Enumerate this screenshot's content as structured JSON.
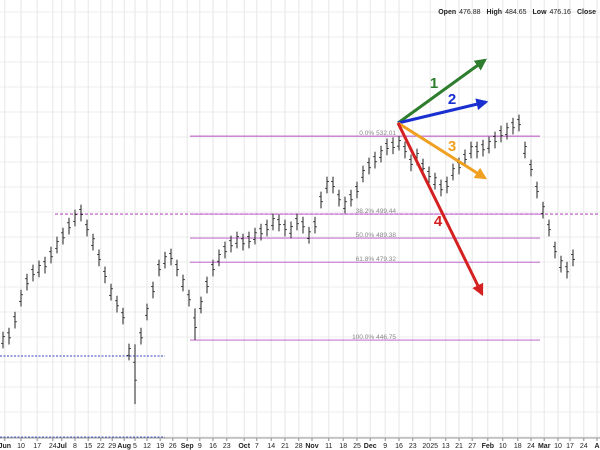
{
  "chart_data": {
    "type": "ohlc",
    "header": [
      {
        "label": "Open",
        "value": "476.88"
      },
      {
        "label": "High",
        "value": "484.65"
      },
      {
        "label": "Low",
        "value": "476.16"
      },
      {
        "label": "Close",
        "value": ""
      }
    ],
    "ylim": [
      405,
      588.9
    ],
    "high": [
      450.3,
      451.9,
      458.6,
      467.8,
      474.5,
      478.3,
      480.0,
      481.6,
      485.8,
      490.0,
      493.7,
      497.9,
      501.3,
      503.4,
      497.1,
      491.2,
      484.6,
      477.5,
      470.3,
      465.3,
      460.3,
      445.3,
      445.0,
      451.9,
      462.0,
      471.2,
      480.4,
      483.7,
      485.0,
      480.4,
      474.1,
      467.8,
      460.0,
      464.9,
      473.3,
      480.4,
      484.6,
      487.9,
      490.4,
      492.1,
      491.2,
      492.1,
      493.7,
      495.4,
      497.1,
      499.6,
      499.2,
      497.1,
      496.3,
      499.6,
      498.3,
      494.1,
      498.3,
      508.8,
      515.1,
      515.1,
      509.6,
      506.7,
      509.6,
      513.0,
      519.7,
      523.0,
      525.5,
      528.0,
      531.0,
      531.5,
      532.01,
      529.7,
      524.3,
      526.8,
      522.6,
      519.3,
      516.7,
      513.8,
      515.1,
      520.5,
      523.0,
      526.4,
      529.7,
      529.7,
      530.5,
      531.8,
      533.9,
      536.4,
      537.6,
      539.7,
      541.0,
      529.7,
      522.2,
      513.0,
      504.6,
      497.1,
      487.9,
      482.0,
      479.5,
      484.6
    ],
    "low": [
      443.3,
      444.9,
      451.6,
      460.8,
      467.5,
      471.3,
      473.0,
      474.6,
      478.8,
      483.0,
      486.7,
      490.9,
      494.3,
      496.4,
      490.1,
      484.2,
      477.6,
      470.5,
      463.3,
      458.3,
      453.3,
      438.3,
      420.0,
      444.9,
      455.0,
      464.2,
      473.4,
      476.7,
      478.0,
      473.4,
      467.1,
      460.8,
      446.75,
      457.9,
      466.3,
      473.4,
      477.6,
      480.9,
      483.4,
      485.1,
      484.2,
      485.1,
      486.7,
      488.4,
      490.1,
      492.6,
      492.2,
      490.1,
      489.3,
      492.6,
      491.3,
      487.1,
      491.3,
      501.8,
      508.1,
      508.1,
      502.6,
      499.7,
      502.6,
      506.0,
      512.7,
      516.0,
      518.5,
      521.0,
      524.0,
      524.5,
      526.0,
      522.7,
      517.3,
      519.8,
      515.6,
      512.3,
      509.7,
      506.8,
      508.1,
      513.5,
      516.0,
      519.4,
      522.7,
      522.7,
      523.5,
      524.8,
      526.9,
      529.4,
      530.6,
      532.7,
      534.0,
      522.7,
      515.2,
      506.0,
      497.6,
      490.1,
      480.9,
      475.0,
      472.5,
      477.6
    ],
    "color": "#222222",
    "xticks": [
      {
        "value": 0.3,
        "label": "Jun"
      },
      {
        "value": 3,
        "label": "10"
      },
      {
        "value": 5.7,
        "label": "17"
      },
      {
        "value": 8.3,
        "label": "24"
      },
      {
        "value": 9.8,
        "label": "Jul"
      },
      {
        "value": 12,
        "label": "8"
      },
      {
        "value": 14.2,
        "label": "15"
      },
      {
        "value": 16.3,
        "label": "22"
      },
      {
        "value": 18.2,
        "label": "29"
      },
      {
        "value": 20.2,
        "label": "Aug"
      },
      {
        "value": 22,
        "label": "5"
      },
      {
        "value": 24,
        "label": "12"
      },
      {
        "value": 26.2,
        "label": "19"
      },
      {
        "value": 28.3,
        "label": "26"
      },
      {
        "value": 30.7,
        "label": "Sep"
      },
      {
        "value": 32.8,
        "label": "9"
      },
      {
        "value": 35,
        "label": "16"
      },
      {
        "value": 37.3,
        "label": "23"
      },
      {
        "value": 40.2,
        "label": "Oct"
      },
      {
        "value": 42.3,
        "label": "7"
      },
      {
        "value": 44.7,
        "label": "14"
      },
      {
        "value": 47,
        "label": "21"
      },
      {
        "value": 49.3,
        "label": "28"
      },
      {
        "value": 51.5,
        "label": "Nov"
      },
      {
        "value": 54.3,
        "label": "11"
      },
      {
        "value": 56.7,
        "label": "18"
      },
      {
        "value": 59,
        "label": "25"
      },
      {
        "value": 61.2,
        "label": "Dec"
      },
      {
        "value": 63.7,
        "label": "9"
      },
      {
        "value": 66,
        "label": "16"
      },
      {
        "value": 68.3,
        "label": "23"
      },
      {
        "value": 71.2,
        "label": "2025"
      },
      {
        "value": 73.8,
        "label": "13"
      },
      {
        "value": 76,
        "label": "21"
      },
      {
        "value": 78.2,
        "label": "27"
      },
      {
        "value": 80.8,
        "label": "Feb"
      },
      {
        "value": 83.3,
        "label": "10"
      },
      {
        "value": 85.8,
        "label": "18"
      },
      {
        "value": 88,
        "label": "24"
      },
      {
        "value": 90.2,
        "label": "Mar"
      },
      {
        "value": 92.5,
        "label": "10"
      },
      {
        "value": 94.5,
        "label": "17"
      },
      {
        "value": 96.8,
        "label": "24"
      },
      {
        "value": 99,
        "label": "A"
      }
    ],
    "grid": true,
    "fib_levels": [
      {
        "label": "0.0%",
        "value": 532.01
      },
      {
        "label": "38.2%",
        "value": 499.44
      },
      {
        "label": "50.0%",
        "value": 489.38
      },
      {
        "label": "61.8%",
        "value": 479.32
      },
      {
        "label": "100.0%",
        "value": 446.75
      }
    ],
    "fib_color": "#b84fc4",
    "support_lines": [
      440.1,
      406.2
    ],
    "support_color": "#3344bb",
    "arrows": [
      {
        "label": "1",
        "color": "#2e7d2e"
      },
      {
        "label": "2",
        "color": "#1a2fcf"
      },
      {
        "label": "3",
        "color": "#f0a020"
      },
      {
        "label": "4",
        "color": "#d42020"
      }
    ]
  }
}
